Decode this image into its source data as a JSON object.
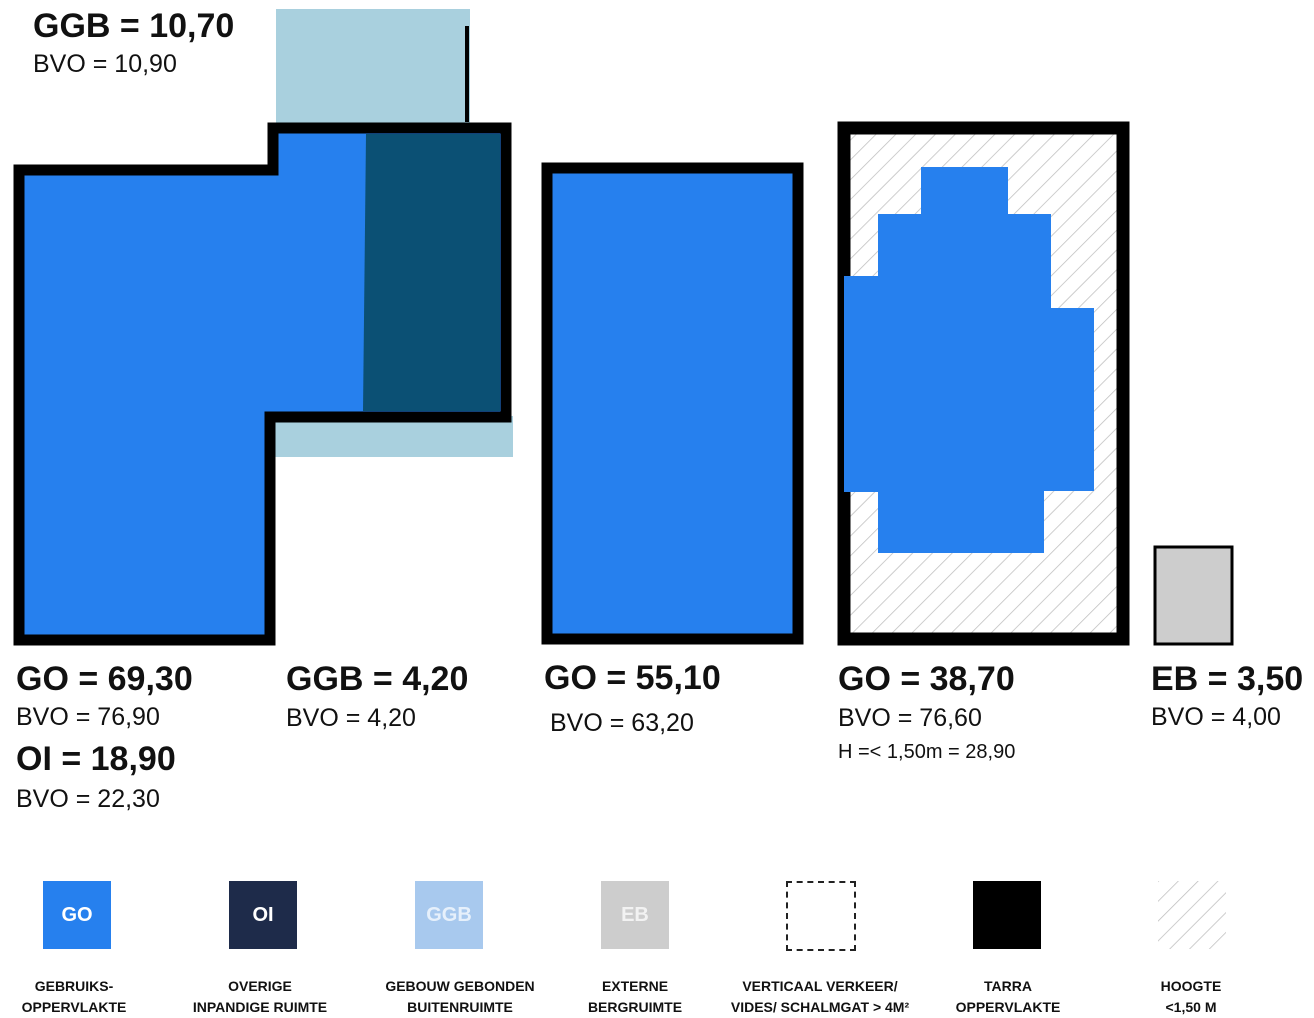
{
  "colors": {
    "go": "#2680ee",
    "oi": "#0b5074",
    "ggb": "#a9d0de",
    "eb": "#cdcdcd",
    "tarra": "#000000",
    "legend_oi": "#1e2b4a",
    "legend_ggb": "#a8c9ee"
  },
  "blocks": [
    {
      "top_heading": "GGB = 10,70",
      "top_sub": "BVO = 10,90",
      "labels": [
        {
          "heading": "GO = 69,30",
          "sub": "BVO = 76,90"
        },
        {
          "heading": "OI = 18,90",
          "sub": "BVO = 22,30"
        },
        {
          "heading": "GGB = 4,20",
          "sub": "BVO = 4,20"
        }
      ]
    },
    {
      "heading": "GO = 55,10",
      "sub": "BVO = 63,20"
    },
    {
      "heading": "GO = 38,70",
      "sub": "BVO = 76,60",
      "extra": "H =< 1,50m = 28,90"
    },
    {
      "heading": "EB = 3,50",
      "sub": "BVO = 4,00"
    }
  ],
  "legend": [
    {
      "code": "GO",
      "line1": "GEBRUIKS-",
      "line2": "OPPERVLAKTE"
    },
    {
      "code": "OI",
      "line1": "OVERIGE",
      "line2": "INPANDIGE RUIMTE"
    },
    {
      "code": "GGB",
      "line1": "GEBOUW GEBONDEN",
      "line2": "BUITENRUIMTE"
    },
    {
      "code": "EB",
      "line1": "EXTERNE",
      "line2": "BERGRUIMTE"
    },
    {
      "code": "",
      "line1": "VERTICAAL VERKEER/",
      "line2": "VIDES/ SCHALMGAT > 4M²"
    },
    {
      "code": "",
      "line1": "TARRA",
      "line2": "OPPERVLAKTE"
    },
    {
      "code": "",
      "line1": "HOOGTE",
      "line2": "<1,50 M"
    }
  ]
}
